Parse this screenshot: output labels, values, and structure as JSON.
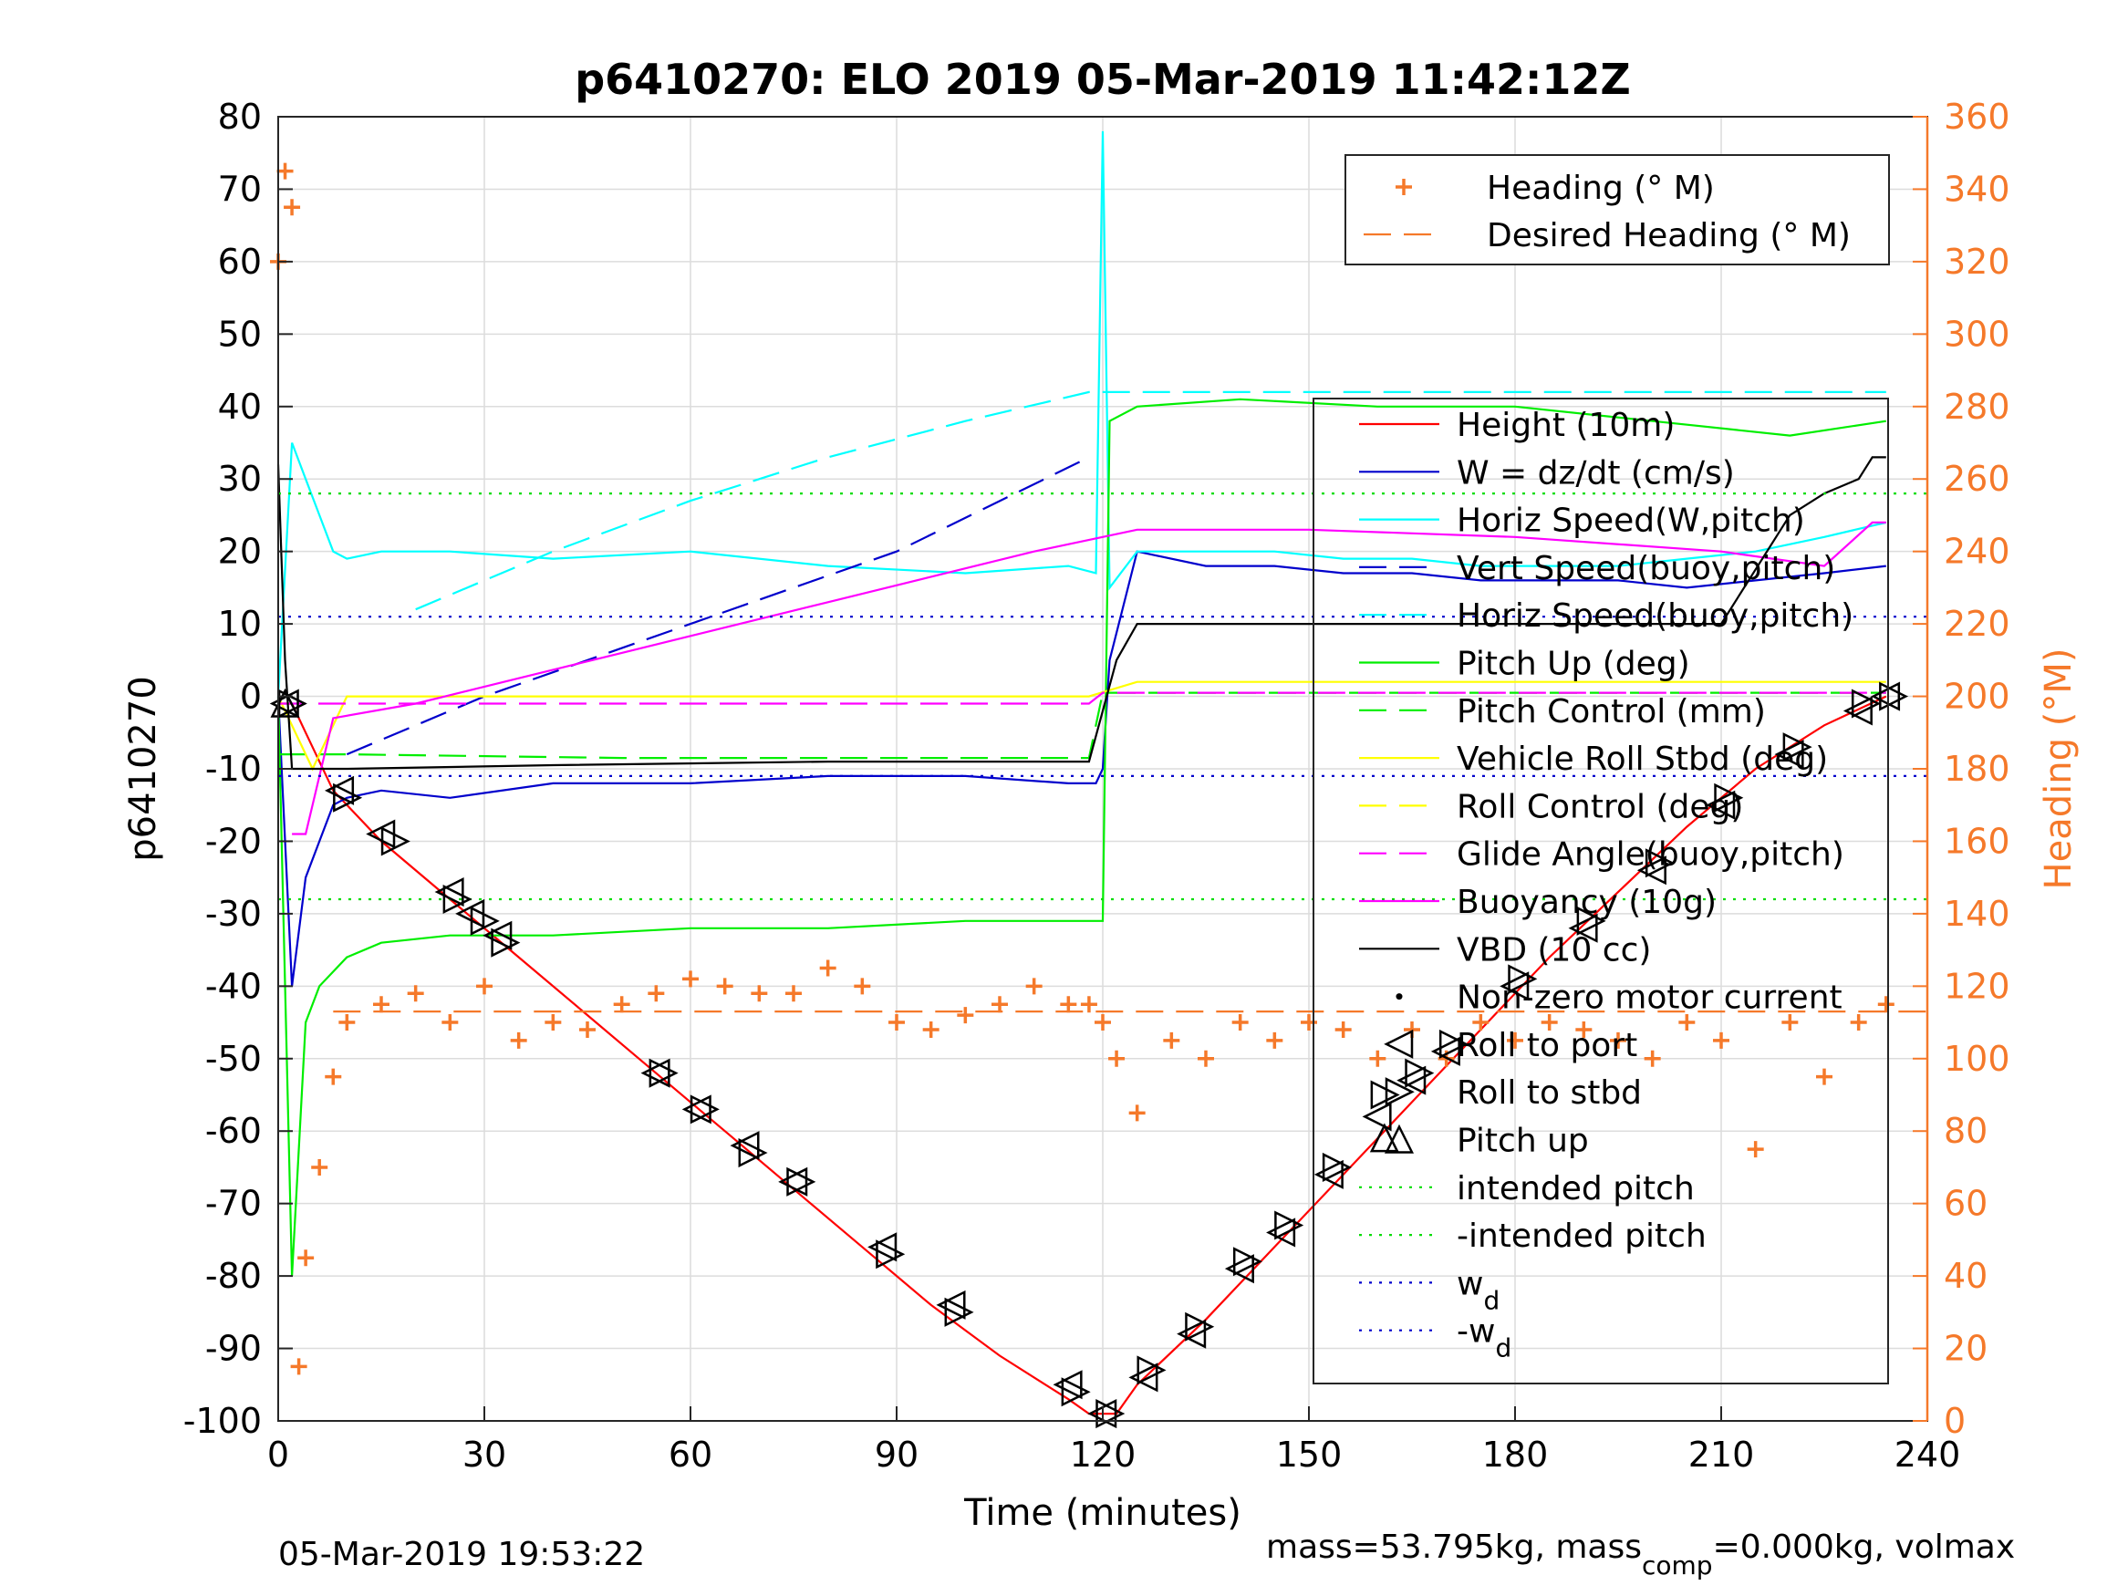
{
  "chart_data": {
    "type": "line",
    "title": "p6410270: ELO 2019 05-Mar-2019 11:42:12Z",
    "xlabel": "Time (minutes)",
    "ylabel": "p6410270",
    "ylabel_right": "Heading (°M)",
    "xlim": [
      0,
      240
    ],
    "ylim": [
      -100,
      80
    ],
    "ylim_right": [
      0,
      360
    ],
    "x_ticks": [
      "0",
      "30",
      "60",
      "90",
      "120",
      "150",
      "180",
      "210",
      "240"
    ],
    "y_ticks": [
      "-100",
      "-90",
      "-80",
      "-70",
      "-60",
      "-50",
      "-40",
      "-30",
      "-20",
      "-10",
      "0",
      "10",
      "20",
      "30",
      "40",
      "50",
      "60",
      "70",
      "80"
    ],
    "y_ticks_right": [
      "0",
      "20",
      "40",
      "60",
      "80",
      "100",
      "120",
      "140",
      "160",
      "180",
      "200",
      "220",
      "240",
      "260",
      "280",
      "300",
      "320",
      "340",
      "360"
    ],
    "grid": true,
    "colors": {
      "height": "#FF0000",
      "w": "#0000CC",
      "horiz_speed": "#00FFFF",
      "pitch": "#00EE00",
      "roll": "#FFFF00",
      "glide": "#FF00FF",
      "vbd": "#000000",
      "heading": "#F5792A",
      "intended_pitch": "#00DD00",
      "wd": "#0000CC"
    },
    "legend_top": [
      {
        "label": "Heading (° M)",
        "style": "plus",
        "color": "#F5792A"
      },
      {
        "label": "Desired Heading (° M)",
        "style": "dash",
        "color": "#F5792A"
      }
    ],
    "legend_main": [
      {
        "label": "Height (10m)",
        "style": "solid",
        "color": "#FF0000"
      },
      {
        "label": "W = dz/dt (cm/s)",
        "style": "solid",
        "color": "#0000CC"
      },
      {
        "label": "Horiz Speed(W,pitch)",
        "style": "solid",
        "color": "#00FFFF"
      },
      {
        "label": "Vert Speed(buoy,pitch)",
        "style": "dash",
        "color": "#0000CC"
      },
      {
        "label": "Horiz Speed(buoy,pitch)",
        "style": "dash",
        "color": "#00FFFF"
      },
      {
        "label": "Pitch Up (deg)",
        "style": "solid",
        "color": "#00EE00"
      },
      {
        "label": "Pitch Control (mm)",
        "style": "dash",
        "color": "#00EE00"
      },
      {
        "label": "Vehicle Roll Stbd (deg)",
        "style": "solid",
        "color": "#FFFF00"
      },
      {
        "label": "Roll Control (deg)",
        "style": "dash",
        "color": "#FFFF00"
      },
      {
        "label": "Glide Angle(buoy,pitch)",
        "style": "dash",
        "color": "#FF00FF"
      },
      {
        "label": "Buoyancy (10g)",
        "style": "solid",
        "color": "#FF00FF"
      },
      {
        "label": "VBD (10 cc)",
        "style": "solid",
        "color": "#000000"
      },
      {
        "label": "Non-zero motor current",
        "style": "dot",
        "color": "#000000"
      },
      {
        "label": "Roll to port",
        "style": "tri-left",
        "color": "#000000"
      },
      {
        "label": "Roll to stbd",
        "style": "tri-right",
        "color": "#000000"
      },
      {
        "label": "Pitch up",
        "style": "tri-up",
        "color": "#000000"
      },
      {
        "label": "intended pitch",
        "style": "dotted",
        "color": "#00DD00"
      },
      {
        "label": "-intended pitch",
        "style": "dotted",
        "color": "#00DD00"
      },
      {
        "label": "w",
        "sub": "d",
        "style": "dotted",
        "color": "#0000CC"
      },
      {
        "label": "-w",
        "sub": "d",
        "style": "dotted",
        "color": "#0000CC"
      }
    ],
    "series": [
      {
        "name": "Height (10m)",
        "x": [
          0,
          1,
          2,
          4,
          8,
          15,
          25,
          35,
          45,
          55,
          65,
          75,
          85,
          95,
          105,
          115,
          118,
          120,
          122,
          125,
          135,
          145,
          155,
          165,
          175,
          185,
          195,
          205,
          215,
          225,
          234
        ],
        "y": [
          -1,
          -1,
          -1,
          -5,
          -13,
          -20,
          -28,
          -36,
          -44,
          -52,
          -60,
          -68,
          -76,
          -84,
          -91,
          -97,
          -99,
          -99,
          -99,
          -95,
          -86,
          -76,
          -66,
          -56,
          -46,
          -36,
          -27,
          -18,
          -10,
          -4,
          0
        ]
      },
      {
        "name": "W = dz/dt (cm/s)",
        "x": [
          0,
          2,
          4,
          6,
          8,
          10,
          15,
          25,
          40,
          60,
          80,
          100,
          115,
          119,
          120,
          121,
          125,
          135,
          145,
          155,
          165,
          175,
          185,
          195,
          205,
          215,
          225,
          234
        ],
        "y": [
          0,
          -40,
          -25,
          -20,
          -15,
          -14,
          -13,
          -14,
          -12,
          -12,
          -11,
          -11,
          -12,
          -12,
          -10,
          5,
          20,
          18,
          18,
          17,
          17,
          16,
          16,
          16,
          15,
          16,
          17,
          18
        ]
      },
      {
        "name": "Horiz Speed(W,pitch)",
        "x": [
          0,
          2,
          4,
          6,
          8,
          10,
          15,
          25,
          40,
          60,
          80,
          100,
          115,
          119,
          120,
          121,
          125,
          135,
          145,
          155,
          165,
          175,
          185,
          195,
          205,
          215,
          225,
          234
        ],
        "y": [
          0,
          35,
          30,
          25,
          20,
          19,
          20,
          20,
          19,
          20,
          18,
          17,
          18,
          17,
          78,
          15,
          20,
          20,
          20,
          19,
          19,
          18,
          18,
          18,
          19,
          20,
          22,
          24
        ]
      },
      {
        "name": "Vert Speed(buoy,pitch)",
        "x": [
          10,
          30,
          60,
          90,
          118
        ],
        "y": [
          -8,
          0,
          10,
          20,
          33
        ]
      },
      {
        "name": "Horiz Speed(buoy,pitch)",
        "x": [
          20,
          40,
          60,
          80,
          100,
          118,
          125,
          150,
          180,
          234
        ],
        "y": [
          12,
          20,
          27,
          33,
          38,
          42,
          42,
          42,
          42,
          42
        ]
      },
      {
        "name": "Pitch Up (deg)",
        "x": [
          0,
          2,
          4,
          6,
          10,
          15,
          25,
          40,
          60,
          80,
          100,
          118,
          120,
          121,
          125,
          140,
          160,
          180,
          200,
          220,
          234
        ],
        "y": [
          0,
          -80,
          -45,
          -40,
          -36,
          -34,
          -33,
          -33,
          -32,
          -32,
          -31,
          -31,
          -31,
          38,
          40,
          41,
          40,
          40,
          38,
          36,
          38
        ]
      },
      {
        "name": "Pitch Control (mm)",
        "x": [
          0,
          10,
          50,
          100,
          118,
          120,
          234
        ],
        "y": [
          -8,
          -8,
          -8.5,
          -8.5,
          -8.5,
          0.5,
          0.5
        ]
      },
      {
        "name": "Vehicle Roll Stbd (deg)",
        "x": [
          0,
          5,
          10,
          30,
          60,
          90,
          118,
          125,
          150,
          180,
          210,
          234
        ],
        "y": [
          0,
          -10,
          0,
          0,
          0,
          0,
          0,
          2,
          2,
          2,
          2,
          2
        ]
      },
      {
        "name": "Glide Angle(buoy,pitch)",
        "x": [
          0,
          118,
          120,
          234
        ],
        "y": [
          -1,
          -1,
          0.5,
          0.5
        ]
      },
      {
        "name": "Buoyancy (10g)",
        "x": [
          2,
          4,
          8,
          20,
          50,
          80,
          110,
          125,
          150,
          180,
          210,
          225,
          232,
          234
        ],
        "y": [
          -19,
          -19,
          -3,
          -1,
          6,
          13,
          20,
          23,
          23,
          22,
          20,
          18,
          24,
          24
        ]
      },
      {
        "name": "VBD (10 cc)",
        "x": [
          0,
          1,
          2,
          10,
          40,
          80,
          118,
          122,
          125,
          150,
          180,
          210,
          220,
          225,
          230,
          232,
          234
        ],
        "y": [
          32,
          5,
          -10,
          -10,
          -9.5,
          -9,
          -9,
          5,
          10,
          10,
          10,
          10,
          25,
          28,
          30,
          33,
          33
        ]
      },
      {
        "name": "intended pitch",
        "x": [
          0,
          240
        ],
        "y": [
          28,
          28
        ]
      },
      {
        "name": "-intended pitch",
        "x": [
          0,
          240
        ],
        "y": [
          -28,
          -28
        ]
      },
      {
        "name": "w",
        "x": [
          0,
          240
        ],
        "y": [
          11,
          11
        ]
      },
      {
        "name": "-w",
        "x": [
          0,
          240
        ],
        "y": [
          -11,
          -11
        ]
      },
      {
        "name": "Desired Heading (° M)",
        "x": [
          8,
          240
        ],
        "y_right": [
          113,
          113
        ]
      },
      {
        "name": "Heading (° M)",
        "x": [
          0,
          1,
          2,
          3,
          4,
          6,
          8,
          10,
          15,
          20,
          25,
          30,
          35,
          40,
          45,
          50,
          55,
          60,
          65,
          70,
          75,
          80,
          85,
          90,
          95,
          100,
          105,
          110,
          115,
          118,
          120,
          122,
          125,
          130,
          135,
          140,
          145,
          150,
          155,
          160,
          165,
          170,
          175,
          180,
          185,
          190,
          195,
          200,
          205,
          210,
          215,
          220,
          225,
          230,
          234
        ],
        "y_right": [
          320,
          345,
          335,
          15,
          45,
          70,
          95,
          110,
          115,
          118,
          110,
          120,
          105,
          110,
          108,
          115,
          118,
          122,
          120,
          118,
          118,
          125,
          120,
          110,
          108,
          112,
          115,
          120,
          115,
          115,
          110,
          100,
          85,
          105,
          100,
          110,
          105,
          110,
          108,
          100,
          108,
          100,
          110,
          105,
          110,
          108,
          105,
          100,
          110,
          105,
          75,
          110,
          95,
          110,
          115
        ]
      }
    ],
    "markers": {
      "roll_to_port": [
        [
          1,
          -1
        ],
        [
          9,
          -13
        ],
        [
          15,
          -19
        ],
        [
          25,
          -27
        ],
        [
          28,
          -30
        ],
        [
          32,
          -33
        ],
        [
          55,
          -52
        ],
        [
          61,
          -57
        ],
        [
          68,
          -62
        ],
        [
          75,
          -67
        ],
        [
          88,
          -76
        ],
        [
          98,
          -84
        ],
        [
          115,
          -95
        ],
        [
          120,
          -99
        ],
        [
          126,
          -94
        ],
        [
          133,
          -88
        ],
        [
          140,
          -79
        ],
        [
          146,
          -74
        ],
        [
          153,
          -66
        ],
        [
          160,
          -58
        ],
        [
          165,
          -53
        ],
        [
          170,
          -49
        ],
        [
          180,
          -40
        ],
        [
          190,
          -32
        ],
        [
          200,
          -24
        ],
        [
          210,
          -15
        ],
        [
          220,
          -8
        ],
        [
          230,
          -2
        ],
        [
          234,
          0
        ]
      ],
      "roll_to_stbd": [
        [
          2,
          -1
        ],
        [
          10,
          -14
        ],
        [
          17,
          -20
        ],
        [
          26,
          -28
        ],
        [
          30,
          -31
        ],
        [
          33,
          -34
        ],
        [
          56,
          -52
        ],
        [
          62,
          -57
        ],
        [
          69,
          -63
        ],
        [
          76,
          -67
        ],
        [
          89,
          -77
        ],
        [
          99,
          -85
        ],
        [
          116,
          -96
        ],
        [
          121,
          -99
        ],
        [
          127,
          -93
        ],
        [
          134,
          -87
        ],
        [
          141,
          -78
        ],
        [
          147,
          -73
        ],
        [
          154,
          -65
        ],
        [
          161,
          -55
        ],
        [
          166,
          -52
        ],
        [
          171,
          -48
        ],
        [
          181,
          -39
        ],
        [
          191,
          -31
        ],
        [
          201,
          -23
        ],
        [
          211,
          -14
        ],
        [
          221,
          -7
        ],
        [
          231,
          -1
        ],
        [
          235,
          0
        ]
      ],
      "pitch_up": [
        [
          1,
          -1
        ],
        [
          161,
          -61
        ]
      ]
    }
  },
  "footer": {
    "timestamp": "05-Mar-2019 19:53:22",
    "mass_prefix": "mass=53.795kg, mass",
    "mass_sub": "comp",
    "mass_suffix": "=0.000kg, volmax"
  }
}
